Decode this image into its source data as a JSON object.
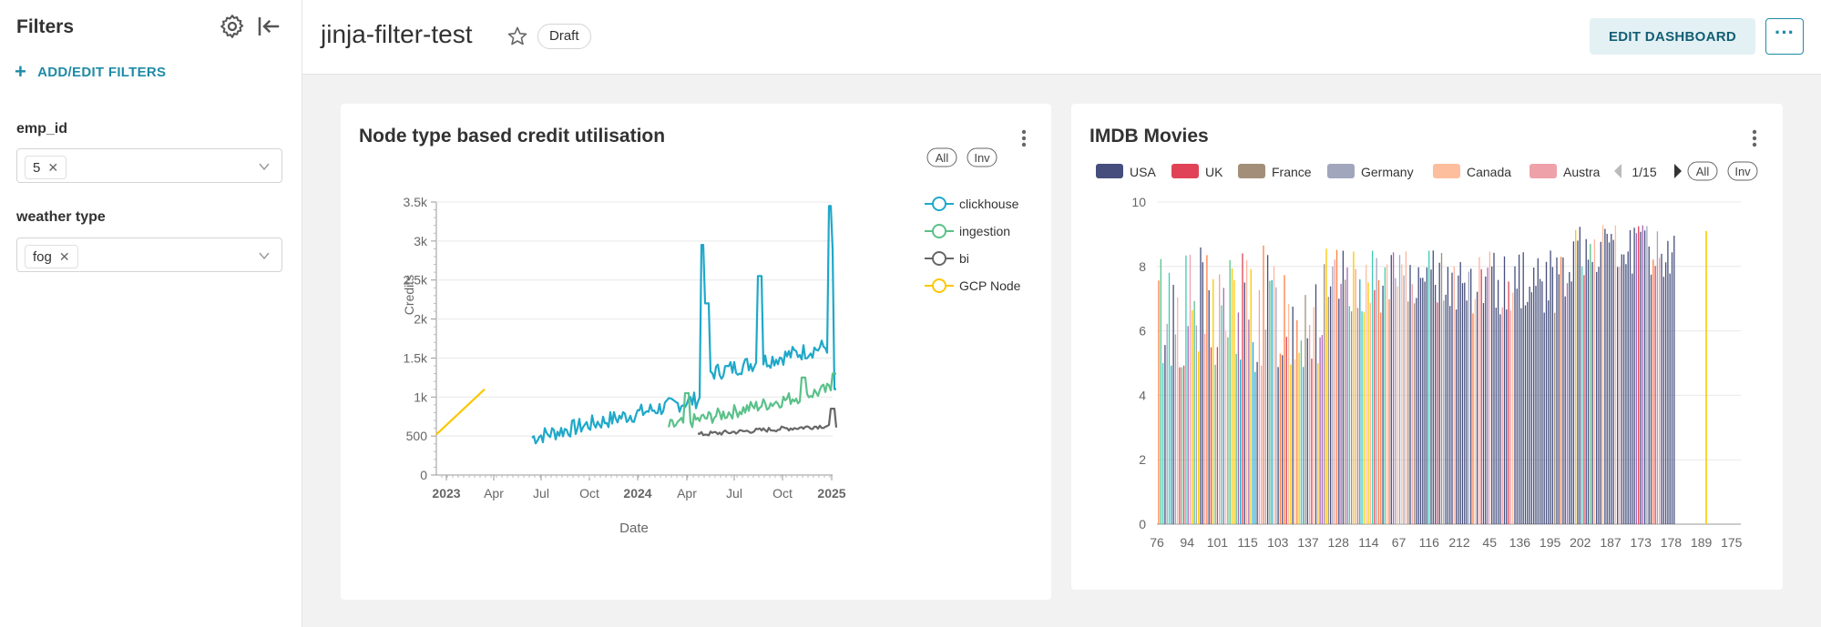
{
  "sidebar": {
    "title": "Filters",
    "add_label": "ADD/EDIT FILTERS",
    "filters": [
      {
        "label": "emp_id",
        "value": "5"
      },
      {
        "label": "weather type",
        "value": "fog"
      }
    ]
  },
  "header": {
    "title": "jinja-filter-test",
    "badge": "Draft",
    "edit_label": "EDIT DASHBOARD",
    "more_label": "···"
  },
  "charts": [
    {
      "title": "Node type based credit utilisation",
      "chart_data": {
        "type": "line",
        "xlabel": "Date",
        "ylabel": "Credits",
        "ylim": [
          0,
          3500
        ],
        "yticks": [
          "0",
          "500",
          "1k",
          "1.5k",
          "2k",
          "2.5k",
          "3k",
          "3.5k"
        ],
        "xticks": [
          "2023",
          "Apr",
          "Jul",
          "Oct",
          "2024",
          "Apr",
          "Jul",
          "Oct",
          "2025"
        ],
        "legend_buttons": [
          "All",
          "Inv"
        ],
        "series": [
          {
            "name": "clickhouse",
            "color": "#1fa8c9"
          },
          {
            "name": "ingestion",
            "color": "#5ac189"
          },
          {
            "name": "bi",
            "color": "#666666"
          },
          {
            "name": "GCP Node",
            "color": "#fcc700"
          }
        ]
      }
    },
    {
      "title": "IMDB Movies",
      "chart_data": {
        "type": "bar",
        "ylim": [
          0,
          10
        ],
        "yticks": [
          "0",
          "2",
          "4",
          "6",
          "8",
          "10"
        ],
        "xticks": [
          "76",
          "94",
          "101",
          "115",
          "103",
          "137",
          "128",
          "114",
          "67",
          "116",
          "212",
          "45",
          "136",
          "195",
          "202",
          "187",
          "173",
          "178",
          "189",
          "175"
        ],
        "legend": [
          "USA",
          "UK",
          "France",
          "Germany",
          "Canada",
          "Austra"
        ],
        "legend_colors": [
          "#454e7c",
          "#e04355",
          "#a38f79",
          "#a1a6bd",
          "#fdbe9d",
          "#efa1aa"
        ],
        "legend_page": "1/15",
        "legend_buttons": [
          "All",
          "Inv"
        ]
      }
    }
  ]
}
